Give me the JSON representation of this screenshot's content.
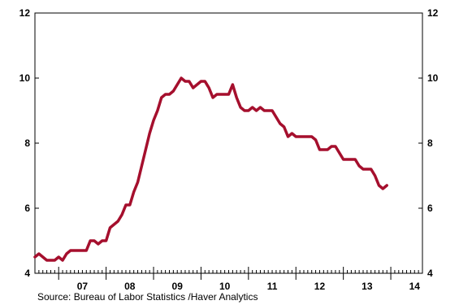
{
  "chart_data": {
    "type": "line",
    "title": "",
    "xlabel": "",
    "ylabel": "",
    "ylim": [
      4,
      12
    ],
    "xlim": [
      2006.5,
      2014.6667
    ],
    "y_ticks": [
      4,
      6,
      8,
      10,
      12
    ],
    "y_tick_labels": [
      "4",
      "6",
      "8",
      "10",
      "12"
    ],
    "x_tick_labels": [
      {
        "label": "07",
        "year": 2007
      },
      {
        "label": "08",
        "year": 2008
      },
      {
        "label": "09",
        "year": 2009
      },
      {
        "label": "10",
        "year": 2010
      },
      {
        "label": "11",
        "year": 2011
      },
      {
        "label": "12",
        "year": 2012
      },
      {
        "label": "13",
        "year": 2013
      },
      {
        "label": "14",
        "year": 2014
      }
    ],
    "grid": false,
    "right_axis": true,
    "series": [
      {
        "color": "#a50f2d",
        "start": "2006-07",
        "frequency": "monthly",
        "values": [
          4.5,
          4.6,
          4.5,
          4.4,
          4.4,
          4.4,
          4.5,
          4.4,
          4.6,
          4.7,
          4.7,
          4.7,
          4.7,
          4.7,
          5.0,
          5.0,
          4.9,
          5.0,
          5.0,
          5.4,
          5.5,
          5.6,
          5.8,
          6.1,
          6.1,
          6.5,
          6.8,
          7.3,
          7.8,
          8.3,
          8.7,
          9.0,
          9.4,
          9.5,
          9.5,
          9.6,
          9.8,
          10.0,
          9.9,
          9.9,
          9.7,
          9.8,
          9.9,
          9.9,
          9.7,
          9.4,
          9.5,
          9.5,
          9.5,
          9.5,
          9.8,
          9.4,
          9.1,
          9.0,
          9.0,
          9.1,
          9.0,
          9.1,
          9.0,
          9.0,
          9.0,
          8.8,
          8.6,
          8.5,
          8.2,
          8.3,
          8.2,
          8.2,
          8.2,
          8.2,
          8.2,
          8.1,
          7.8,
          7.8,
          7.8,
          7.9,
          7.9,
          7.7,
          7.5,
          7.5,
          7.5,
          7.5,
          7.3,
          7.2,
          7.2,
          7.2,
          7.0,
          6.7,
          6.6,
          6.7
        ]
      }
    ]
  },
  "source_text": "Source:  Bureau of Labor Statistics /Haver Analytics"
}
